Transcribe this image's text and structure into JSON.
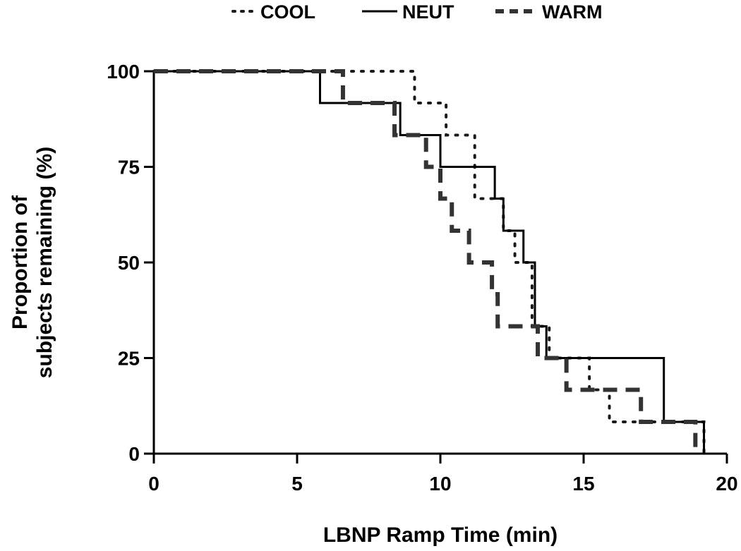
{
  "chart_data": {
    "type": "line",
    "step": true,
    "xlabel": "LBNP Ramp  Time  (min)",
    "ylabel_lines": [
      "Proportion of",
      "subjects  remaining (%)"
    ],
    "xlim": [
      0,
      20
    ],
    "ylim": [
      0,
      100
    ],
    "xticks": [
      0,
      5,
      10,
      15,
      20
    ],
    "yticks": [
      0,
      25,
      50,
      75,
      100
    ],
    "grid": false,
    "legend_position": "top",
    "series": [
      {
        "name": "COOL",
        "style": "dotted",
        "color": "#1a1a1a",
        "x": [
          0,
          9.1,
          10.2,
          11.2,
          12.2,
          12.6,
          13.2,
          13.8,
          15.2,
          15.9,
          18.9,
          19.2
        ],
        "y": [
          100,
          91.7,
          83.3,
          66.7,
          58.3,
          50,
          33.3,
          25,
          16.7,
          8.3,
          8.3,
          0
        ]
      },
      {
        "name": "NEUT",
        "style": "solid",
        "color": "#000000",
        "x": [
          0,
          5.8,
          8.6,
          10.0,
          11.9,
          12.2,
          12.9,
          13.3,
          13.7,
          17.8,
          19.2
        ],
        "y": [
          100,
          91.7,
          83.3,
          75,
          66.7,
          58.3,
          50,
          33.3,
          25,
          8.3,
          0
        ]
      },
      {
        "name": "WARM",
        "style": "dashed",
        "color": "#333333",
        "x": [
          0,
          6.6,
          8.4,
          9.5,
          10.0,
          10.4,
          11.0,
          11.8,
          12.0,
          13.4,
          14.4,
          17.0,
          18.9
        ],
        "y": [
          100,
          91.7,
          83.3,
          75,
          66.7,
          58.3,
          50,
          41.7,
          33.3,
          25,
          16.7,
          8.3,
          0
        ]
      }
    ]
  }
}
